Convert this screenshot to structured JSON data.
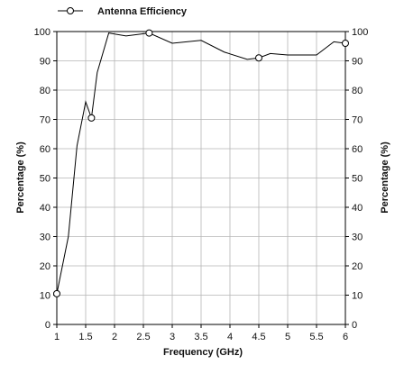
{
  "chart_data": {
    "type": "line",
    "title": "",
    "xlabel": "Frequency (GHz)",
    "ylabel_left": "Percentage (%)",
    "ylabel_right": "Percentage (%)",
    "xlim": [
      1,
      6
    ],
    "ylim": [
      0,
      100
    ],
    "xticks": [
      1,
      1.5,
      2,
      2.5,
      3,
      3.5,
      4,
      4.5,
      5,
      5.5,
      6
    ],
    "xtick_labels": [
      "1",
      "1.5",
      "2",
      "2.5",
      "3",
      "3.5",
      "4",
      "4.5",
      "5",
      "5.5",
      "6"
    ],
    "yticks": [
      0,
      10,
      20,
      30,
      40,
      50,
      60,
      70,
      80,
      90,
      100
    ],
    "grid": true,
    "legend_position": "top-left",
    "series": [
      {
        "name": "Antenna Efficiency",
        "color": "#000000",
        "marker": "open-circle",
        "x": [
          1.0,
          1.2,
          1.35,
          1.5,
          1.6,
          1.7,
          1.9,
          2.2,
          2.6,
          3.0,
          3.5,
          3.9,
          4.3,
          4.5,
          4.7,
          5.0,
          5.5,
          5.8,
          6.0
        ],
        "y": [
          10.5,
          30,
          61,
          76,
          70.5,
          86,
          99.5,
          98.5,
          99.5,
          96,
          97,
          93,
          90.5,
          91,
          92.5,
          92,
          92,
          96.5,
          96
        ],
        "marker_points": [
          {
            "x": 1.0,
            "y": 10.5
          },
          {
            "x": 1.6,
            "y": 70.5
          },
          {
            "x": 2.6,
            "y": 99.5
          },
          {
            "x": 4.5,
            "y": 91
          },
          {
            "x": 6.0,
            "y": 96
          }
        ]
      }
    ]
  }
}
